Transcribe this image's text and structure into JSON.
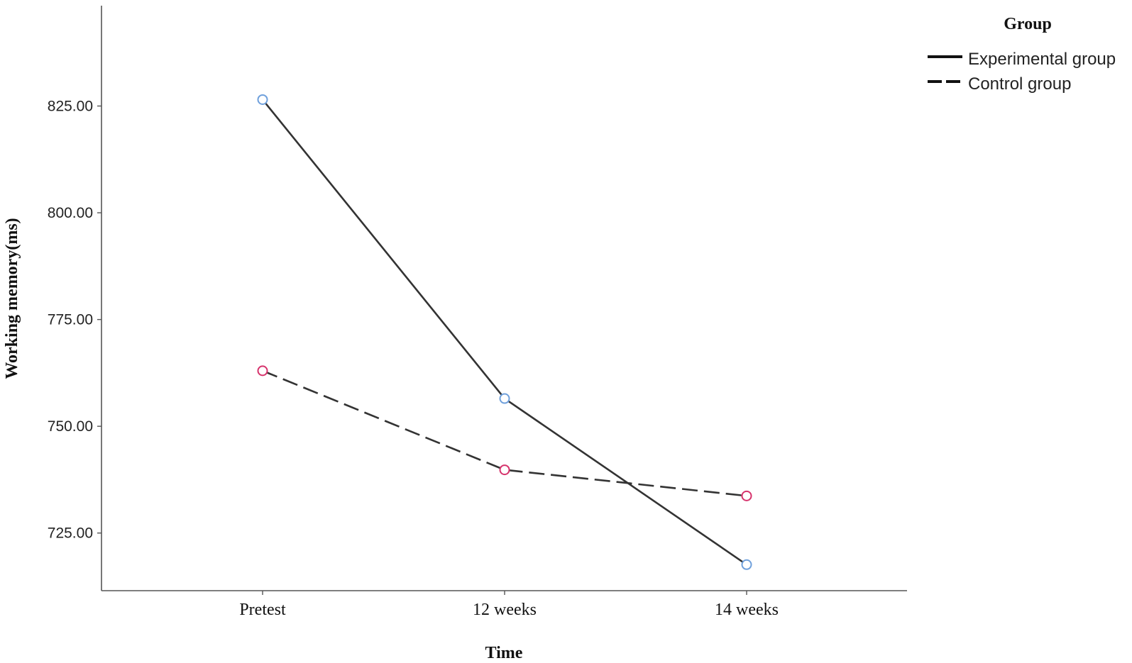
{
  "chart_data": {
    "type": "line",
    "xlabel": "Time",
    "ylabel": "Working memory(ms)",
    "categories": [
      "Pretest",
      "12 weeks",
      "14 weeks"
    ],
    "ylim": [
      711.5,
      848.5
    ],
    "yticks": [
      725,
      750,
      775,
      800,
      825
    ],
    "ytick_labels": [
      "725.00",
      "750.00",
      "775.00",
      "800.00",
      "825.00"
    ],
    "grid": false,
    "legend": {
      "title": "Group",
      "placement": "top-right"
    },
    "series": [
      {
        "name": "Experimental group",
        "values": [
          826.5,
          756.5,
          717.6
        ],
        "line_style": "solid",
        "line_color": "#333333",
        "marker_color": "#6fa0dc"
      },
      {
        "name": "Control group",
        "values": [
          763.0,
          739.8,
          733.7
        ],
        "line_style": "dashed",
        "line_color": "#333333",
        "marker_color": "#d6336c"
      }
    ]
  }
}
